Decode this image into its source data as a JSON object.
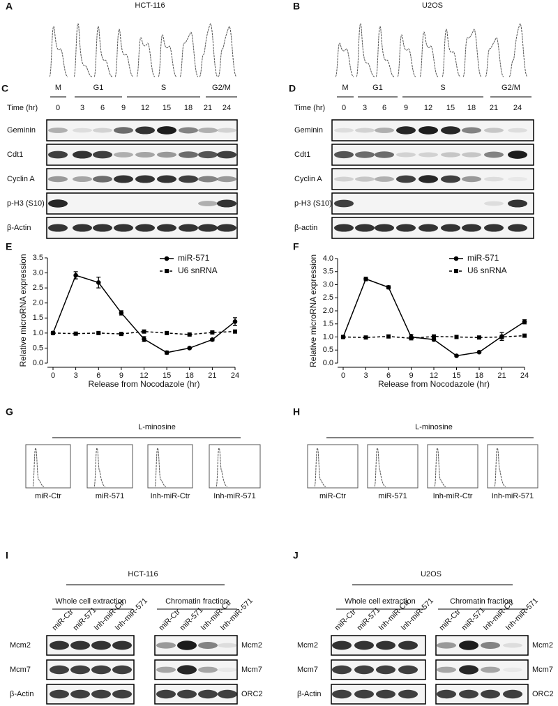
{
  "figure": {
    "A": {
      "label": "A",
      "title": "HCT-116"
    },
    "B": {
      "label": "B",
      "title": "U2OS"
    },
    "C": {
      "label": "C",
      "phases": [
        "M",
        "G1",
        "S",
        "G2/M"
      ],
      "time_label": "Time (hr)",
      "times": [
        0,
        3,
        6,
        9,
        12,
        15,
        18,
        21,
        24
      ],
      "rows": [
        "Geminin",
        "Cdt1",
        "Cyclin A",
        "p-H3 (S10)",
        "β-Actin"
      ]
    },
    "D": {
      "label": "D",
      "phases": [
        "M",
        "G1",
        "S",
        "G2/M"
      ],
      "time_label": "Time (hr)",
      "times": [
        0,
        3,
        6,
        9,
        12,
        15,
        18,
        21,
        24
      ],
      "rows": [
        "Geminin",
        "Cdt1",
        "Cyclin A",
        "p-H3 (S10)",
        "β-actin"
      ]
    },
    "G": {
      "label": "G",
      "title": "L-minosine",
      "conditions": [
        "miR-Ctr",
        "miR-571",
        "Inh-miR-Ctr",
        "Inh-miR-571"
      ]
    },
    "H": {
      "label": "H",
      "title": "L-minosine",
      "conditions": [
        "miR-Ctr",
        "miR-571",
        "Inh-miR-Ctr",
        "Inh-miR-571"
      ]
    },
    "I": {
      "label": "I",
      "title": "HCT-116",
      "groups": [
        "Whole cell extraction",
        "Chromatin fraction"
      ],
      "lanes": [
        "miR-Ctr",
        "miR-571",
        "Inh-miR-Ctr",
        "Inh-miR-571"
      ],
      "left_rows": [
        "Mcm2",
        "Mcm7",
        "β-Actin"
      ],
      "right_rows": [
        "Mcm2",
        "Mcm7",
        "ORC2"
      ]
    },
    "J": {
      "label": "J",
      "title": "U2OS",
      "groups": [
        "Whole cell extraction",
        "Chromatin fraction"
      ],
      "lanes": [
        "miR-Ctr",
        "miR-571",
        "Inh-miR-Ctr",
        "Inh-miR-571"
      ],
      "left_rows": [
        "Mcm2",
        "Mcm7",
        "β-Actin"
      ],
      "right_rows": [
        "Mcm2",
        "Mcm7",
        "ORC2"
      ]
    }
  },
  "chart_data": [
    {
      "type": "line",
      "panel_label": "E",
      "xlabel": "Release from Nocodazole (hr)",
      "ylabel": "Relative microRNA expression",
      "x": [
        0,
        3,
        6,
        9,
        12,
        15,
        18,
        21,
        24
      ],
      "xlim": [
        0,
        24
      ],
      "xticks": [
        0,
        3,
        6,
        9,
        12,
        15,
        18,
        21,
        24
      ],
      "ylim": [
        0,
        3.5
      ],
      "yticks": [
        {
          "value": 0,
          "label": "0.0"
        },
        {
          "value": 0.5,
          "label": "0.5"
        },
        {
          "value": 1,
          "label": "1.0"
        },
        {
          "value": 1.5,
          "label": "1.5"
        },
        {
          "value": 2,
          "label": "2.0"
        },
        {
          "value": 2.5,
          "label": "2.5"
        },
        {
          "value": 3,
          "label": "3.0"
        },
        {
          "value": 3.5,
          "label": "3.5"
        }
      ],
      "series": [
        {
          "name": "miR-571",
          "color": "#000000",
          "marker": "circle",
          "dashed": false,
          "values": [
            1.0,
            2.92,
            2.68,
            1.67,
            0.8,
            0.35,
            0.5,
            0.78,
            1.38
          ],
          "errors": [
            0,
            0.12,
            0.18,
            0.07,
            0.08,
            0.05,
            0.03,
            0.04,
            0.13
          ]
        },
        {
          "name": "U6 snRNA",
          "color": "#000000",
          "marker": "square",
          "dashed": true,
          "values": [
            1.0,
            0.98,
            1.0,
            0.97,
            1.05,
            1.0,
            0.95,
            1.02,
            1.05
          ],
          "errors": [
            0,
            0.02,
            0.02,
            0.02,
            0.03,
            0.02,
            0.02,
            0.02,
            0.03
          ]
        }
      ]
    },
    {
      "type": "line",
      "panel_label": "F",
      "xlabel": "Release from Nocodazole (hr)",
      "ylabel": "Relative microRNA expression",
      "x": [
        0,
        3,
        6,
        9,
        12,
        15,
        18,
        21,
        24
      ],
      "xlim": [
        0,
        24
      ],
      "xticks": [
        0,
        3,
        6,
        9,
        12,
        15,
        18,
        21,
        24
      ],
      "ylim": [
        0,
        4
      ],
      "yticks": [
        {
          "value": 0,
          "label": "0.0"
        },
        {
          "value": 0.5,
          "label": "0.5"
        },
        {
          "value": 1,
          "label": "1.0"
        },
        {
          "value": 1.5,
          "label": "1.5"
        },
        {
          "value": 2,
          "label": "2.0"
        },
        {
          "value": 2.5,
          "label": "2.5"
        },
        {
          "value": 3,
          "label": "3.0"
        },
        {
          "value": 3.5,
          "label": "3.5"
        },
        {
          "value": 4,
          "label": "4.0"
        }
      ],
      "series": [
        {
          "name": "miR-571",
          "color": "#000000",
          "marker": "circle",
          "dashed": false,
          "values": [
            1.0,
            3.22,
            2.9,
            1.0,
            0.9,
            0.28,
            0.42,
            1.02,
            1.58
          ],
          "errors": [
            0,
            0.07,
            0.06,
            0.1,
            0.05,
            0.03,
            0.03,
            0.15,
            0.08
          ]
        },
        {
          "name": "U6 snRNA",
          "color": "#000000",
          "marker": "square",
          "dashed": true,
          "values": [
            1.0,
            0.98,
            1.02,
            0.95,
            1.02,
            1.0,
            0.98,
            1.0,
            1.05
          ],
          "errors": [
            0,
            0.02,
            0.02,
            0.02,
            0.03,
            0.02,
            0.05,
            0.02,
            0.03
          ]
        }
      ]
    }
  ]
}
